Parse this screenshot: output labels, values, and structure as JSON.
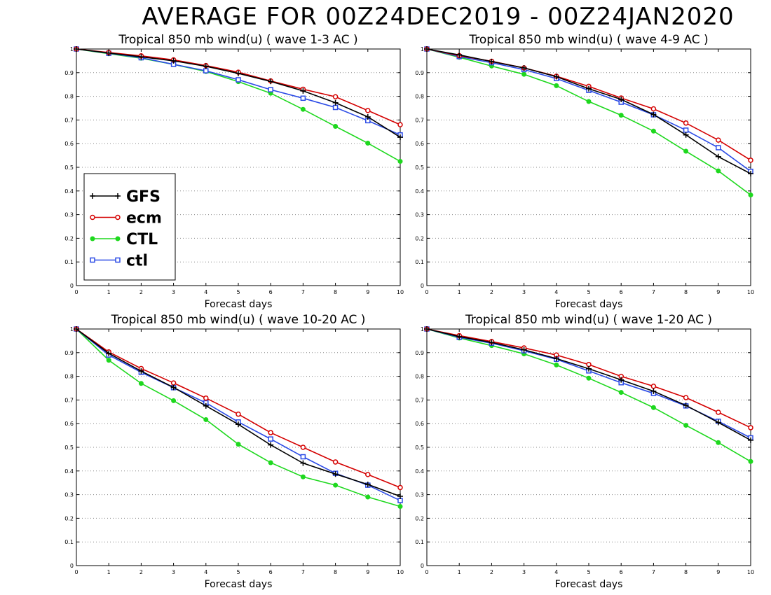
{
  "title": "AVERAGE FOR 00Z24DEC2019 - 00Z24JAN2020",
  "legend": [
    {
      "name": "GFS",
      "color": "#000000",
      "marker": "plus"
    },
    {
      "name": "ecm",
      "color": "#d40000",
      "marker": "open-circle"
    },
    {
      "name": "CTL",
      "color": "#1ed81e",
      "marker": "filled-circle"
    },
    {
      "name": "ctl",
      "color": "#2a4ae6",
      "marker": "open-square"
    }
  ],
  "chart_data": [
    {
      "type": "line",
      "title": "Tropical 850 mb wind(u) ( wave 1-3 AC )",
      "xlabel": "Forecast days",
      "ylabel": "",
      "x": [
        0,
        1,
        2,
        3,
        4,
        5,
        6,
        7,
        8,
        9,
        10
      ],
      "xlim": [
        0,
        10
      ],
      "ylim": [
        0,
        1
      ],
      "yticks": [
        "0",
        "0.1",
        "0.2",
        "0.3",
        "0.4",
        "0.5",
        "0.6",
        "0.7",
        "0.8",
        "0.9",
        "1"
      ],
      "xticks": [
        "0",
        "1",
        "2",
        "3",
        "4",
        "5",
        "6",
        "7",
        "8",
        "9",
        "10"
      ],
      "grid": "horizontal-dotted",
      "legend_position": "bottom-left",
      "series": [
        {
          "name": "GFS",
          "values": [
            1,
            0.983,
            0.967,
            0.95,
            0.927,
            0.897,
            0.863,
            0.823,
            0.773,
            0.713,
            0.627
          ]
        },
        {
          "name": "ecm",
          "values": [
            1,
            0.985,
            0.971,
            0.954,
            0.93,
            0.902,
            0.865,
            0.83,
            0.798,
            0.74,
            0.68
          ]
        },
        {
          "name": "CTL",
          "values": [
            1,
            0.98,
            0.961,
            0.935,
            0.905,
            0.862,
            0.813,
            0.745,
            0.673,
            0.602,
            0.525
          ]
        },
        {
          "name": "ctl",
          "values": [
            1,
            0.982,
            0.963,
            0.935,
            0.908,
            0.87,
            0.828,
            0.792,
            0.753,
            0.697,
            0.637
          ]
        }
      ]
    },
    {
      "type": "line",
      "title": "Tropical 850 mb wind(u) ( wave 4-9 AC )",
      "xlabel": "Forecast days",
      "ylabel": "",
      "x": [
        0,
        1,
        2,
        3,
        4,
        5,
        6,
        7,
        8,
        9,
        10
      ],
      "xlim": [
        0,
        10
      ],
      "ylim": [
        0,
        1
      ],
      "yticks": [
        "0",
        "0.1",
        "0.2",
        "0.3",
        "0.4",
        "0.5",
        "0.6",
        "0.7",
        "0.8",
        "0.9",
        "1"
      ],
      "xticks": [
        "0",
        "1",
        "2",
        "3",
        "4",
        "5",
        "6",
        "7",
        "8",
        "9",
        "10"
      ],
      "grid": "horizontal-dotted",
      "series": [
        {
          "name": "GFS",
          "values": [
            1,
            0.975,
            0.947,
            0.92,
            0.883,
            0.832,
            0.787,
            0.723,
            0.637,
            0.545,
            0.473
          ]
        },
        {
          "name": "ecm",
          "values": [
            1,
            0.972,
            0.948,
            0.92,
            0.885,
            0.842,
            0.793,
            0.747,
            0.687,
            0.615,
            0.53
          ]
        },
        {
          "name": "CTL",
          "values": [
            1,
            0.965,
            0.928,
            0.893,
            0.845,
            0.778,
            0.72,
            0.653,
            0.568,
            0.485,
            0.383
          ]
        },
        {
          "name": "ctl",
          "values": [
            1,
            0.968,
            0.942,
            0.913,
            0.875,
            0.825,
            0.775,
            0.722,
            0.657,
            0.583,
            0.483
          ]
        }
      ]
    },
    {
      "type": "line",
      "title": "Tropical 850 mb wind(u) ( wave 10-20 AC )",
      "xlabel": "Forecast days",
      "ylabel": "",
      "x": [
        0,
        1,
        2,
        3,
        4,
        5,
        6,
        7,
        8,
        9,
        10
      ],
      "xlim": [
        0,
        10
      ],
      "ylim": [
        0,
        1
      ],
      "yticks": [
        "0",
        "0.1",
        "0.2",
        "0.3",
        "0.4",
        "0.5",
        "0.6",
        "0.7",
        "0.8",
        "0.9",
        "1"
      ],
      "xticks": [
        "0",
        "1",
        "2",
        "3",
        "4",
        "5",
        "6",
        "7",
        "8",
        "9",
        "10"
      ],
      "grid": "horizontal-dotted",
      "series": [
        {
          "name": "GFS",
          "values": [
            1,
            0.897,
            0.822,
            0.753,
            0.675,
            0.597,
            0.51,
            0.433,
            0.387,
            0.343,
            0.293
          ]
        },
        {
          "name": "ecm",
          "values": [
            1,
            0.903,
            0.833,
            0.772,
            0.708,
            0.64,
            0.562,
            0.5,
            0.438,
            0.385,
            0.33
          ]
        },
        {
          "name": "CTL",
          "values": [
            1,
            0.868,
            0.77,
            0.697,
            0.617,
            0.513,
            0.435,
            0.375,
            0.34,
            0.29,
            0.25
          ]
        },
        {
          "name": "ctl",
          "values": [
            1,
            0.89,
            0.817,
            0.752,
            0.688,
            0.607,
            0.535,
            0.46,
            0.39,
            0.34,
            0.275
          ]
        }
      ]
    },
    {
      "type": "line",
      "title": "Tropical 850 mb wind(u) ( wave 1-20 AC )",
      "xlabel": "Forecast days",
      "ylabel": "",
      "x": [
        0,
        1,
        2,
        3,
        4,
        5,
        6,
        7,
        8,
        9,
        10
      ],
      "xlim": [
        0,
        10
      ],
      "ylim": [
        0,
        1
      ],
      "yticks": [
        "0",
        "0.1",
        "0.2",
        "0.3",
        "0.4",
        "0.5",
        "0.6",
        "0.7",
        "0.8",
        "0.9",
        "1"
      ],
      "xticks": [
        "0",
        "1",
        "2",
        "3",
        "4",
        "5",
        "6",
        "7",
        "8",
        "9",
        "10"
      ],
      "grid": "horizontal-dotted",
      "series": [
        {
          "name": "GFS",
          "values": [
            1,
            0.968,
            0.943,
            0.912,
            0.875,
            0.832,
            0.785,
            0.737,
            0.677,
            0.605,
            0.53
          ]
        },
        {
          "name": "ecm",
          "values": [
            1,
            0.972,
            0.947,
            0.92,
            0.89,
            0.85,
            0.8,
            0.758,
            0.71,
            0.648,
            0.583
          ]
        },
        {
          "name": "CTL",
          "values": [
            1,
            0.962,
            0.93,
            0.895,
            0.848,
            0.792,
            0.732,
            0.668,
            0.593,
            0.52,
            0.44
          ]
        },
        {
          "name": "ctl",
          "values": [
            1,
            0.965,
            0.94,
            0.908,
            0.872,
            0.823,
            0.773,
            0.728,
            0.675,
            0.61,
            0.54
          ]
        }
      ]
    }
  ]
}
